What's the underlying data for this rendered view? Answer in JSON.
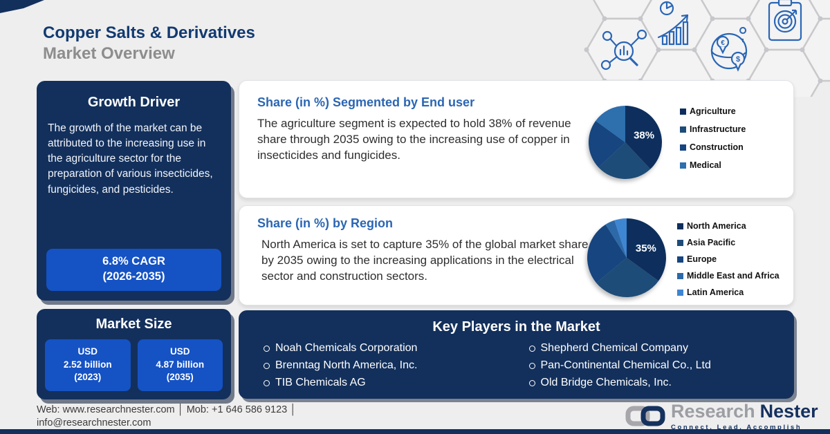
{
  "header": {
    "title_line1": "Copper Salts & Derivatives",
    "title_line2": "Market Overview",
    "decor_icons": [
      "market-research-icon",
      "growth-chart-icon",
      "global-market-icon",
      "target-analysis-icon"
    ]
  },
  "growth_driver": {
    "heading": "Growth Driver",
    "body": "The growth of the market can be attributed to the increasing use in the agriculture sector for the preparation of various insecticides, fungicides, and pesticides.",
    "cagr_line1": "6.8% CAGR",
    "cagr_line2": "(2026-2035)"
  },
  "market_size": {
    "heading": "Market Size",
    "boxes": [
      {
        "line1": "USD",
        "line2": "2.52 billion",
        "line3": "(2023)"
      },
      {
        "line1": "USD",
        "line2": "4.87 billion",
        "line3": "(2035)"
      }
    ]
  },
  "cards": [
    {
      "heading": "Share (in %) Segmented by End user",
      "body": "The agriculture segment is expected to hold 38% of revenue share through 2035 owing to the increasing use of copper in insecticides and fungicides."
    },
    {
      "heading": "Share (in %) by Region",
      "body": "North America is set to capture 35% of the global market share by 2035 owing to the increasing applications in the electrical sector and construction sectors."
    }
  ],
  "chart_data": [
    {
      "type": "pie",
      "title": "Share (in %) Segmented by End user",
      "labels": [
        "Agriculture",
        "Infrastructure",
        "Construction",
        "Medical"
      ],
      "values": [
        38,
        25,
        22,
        15
      ],
      "colors": [
        "#0e2f5d",
        "#1d4c78",
        "#16457f",
        "#2e6fae"
      ],
      "highlight_label": "38%",
      "legend_position": "right"
    },
    {
      "type": "pie",
      "title": "Share (in %) by Region",
      "labels": [
        "North America",
        "Asia Pacific",
        "Europe",
        "Middle East and Africa",
        "Latin America"
      ],
      "values": [
        35,
        29,
        27,
        4,
        5
      ],
      "colors": [
        "#0e2f5d",
        "#1d4c78",
        "#16457f",
        "#2d69a8",
        "#3e86d2"
      ],
      "highlight_label": "35%",
      "legend_position": "right"
    }
  ],
  "key_players": {
    "heading": "Key Players in the Market",
    "column1": [
      "Noah Chemicals Corporation",
      "Brenntag North America, Inc.",
      "TIB Chemicals AG"
    ],
    "column2": [
      "Shepherd Chemical Company",
      "Pan-Continental Chemical Co., Ltd",
      "Old Bridge Chemicals, Inc."
    ]
  },
  "footer": {
    "contact_line1": "Web: www.researchnester.com │ Mob: +1 646 586 9123 │",
    "contact_line2": "info@researchnester.com",
    "logo": {
      "brand_part1": "Research",
      "brand_part2": "Nester",
      "tagline": "Connect. Lead. Accomplish"
    }
  },
  "colors": {
    "background": "#eeeeef",
    "navy_panel": "#13305c",
    "royal_blue": "#1552c4",
    "card_heading_blue": "#2b66b3",
    "title_navy": "#123a70",
    "title_gray": "#8d8d8d",
    "icon_blue": "#2a66b5"
  }
}
